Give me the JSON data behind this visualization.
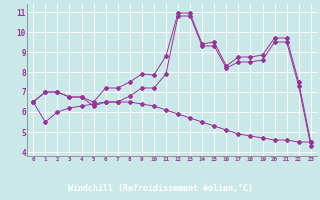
{
  "xlabel": "Windchill (Refroidissement éolien,°C)",
  "background_color": "#cbe8e8",
  "axis_bg_color": "#cbe8e8",
  "line_color": "#993399",
  "xlabel_bg": "#8833aa",
  "xlim_min": -0.5,
  "xlim_max": 23.5,
  "ylim_min": 3.8,
  "ylim_max": 11.4,
  "xtick_labels": [
    "0",
    "1",
    "2",
    "3",
    "4",
    "5",
    "6",
    "7",
    "8",
    "9",
    "10",
    "11",
    "12",
    "13",
    "14",
    "15",
    "16",
    "17",
    "18",
    "19",
    "20",
    "21",
    "22",
    "23"
  ],
  "ytick_values": [
    4,
    5,
    6,
    7,
    8,
    9,
    10,
    11
  ],
  "ytick_labels": [
    "4",
    "5",
    "6",
    "7",
    "8",
    "9",
    "10",
    "11"
  ],
  "series1": [
    6.5,
    7.0,
    7.0,
    6.75,
    6.75,
    6.5,
    7.2,
    7.2,
    7.5,
    7.9,
    7.85,
    8.8,
    10.95,
    10.95,
    9.4,
    9.5,
    8.3,
    8.75,
    8.75,
    8.85,
    9.7,
    9.7,
    7.5,
    4.5
  ],
  "series2": [
    6.5,
    7.0,
    7.0,
    6.75,
    6.75,
    6.3,
    6.5,
    6.5,
    6.8,
    7.2,
    7.2,
    7.9,
    10.8,
    10.8,
    9.3,
    9.3,
    8.2,
    8.5,
    8.5,
    8.6,
    9.5,
    9.5,
    7.3,
    4.3
  ],
  "series3": [
    6.5,
    5.5,
    6.0,
    6.2,
    6.3,
    6.4,
    6.5,
    6.5,
    6.5,
    6.4,
    6.3,
    6.1,
    5.9,
    5.7,
    5.5,
    5.3,
    5.1,
    4.9,
    4.8,
    4.7,
    4.6,
    4.6,
    4.5,
    4.5
  ]
}
